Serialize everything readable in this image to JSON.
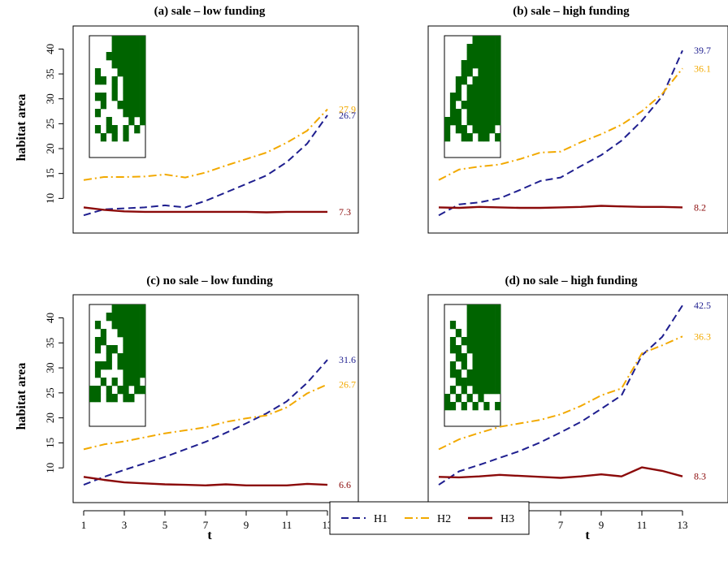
{
  "figure": {
    "ylabel": "habitat area",
    "xlabel": "t",
    "legend_position": "bottom-center"
  },
  "legend": [
    {
      "key": "H1",
      "label": "H1",
      "color": "#1f1f8f",
      "dash": "dashed"
    },
    {
      "key": "H2",
      "label": "H2",
      "color": "#f2a900",
      "dash": "dotdash"
    },
    {
      "key": "H3",
      "label": "H3",
      "color": "#8b0a0a",
      "dash": "solid"
    }
  ],
  "chart_data": [
    {
      "type": "line",
      "title": "(a) sale – low funding",
      "x": [
        1,
        2,
        3,
        4,
        5,
        6,
        7,
        8,
        9,
        10,
        11,
        12,
        13
      ],
      "xlim": [
        1,
        13
      ],
      "ylim": [
        5,
        43
      ],
      "x_ticks": [
        1,
        3,
        5,
        7,
        9,
        11,
        13
      ],
      "y_ticks": [
        10,
        15,
        20,
        25,
        30,
        35,
        40
      ],
      "series": [
        {
          "name": "H1",
          "values": [
            6.6,
            7.8,
            8.0,
            8.2,
            8.6,
            8.2,
            9.5,
            11.2,
            12.9,
            14.6,
            17.3,
            21.0,
            26.7
          ],
          "end_label": "26.7"
        },
        {
          "name": "H2",
          "values": [
            13.7,
            14.3,
            14.3,
            14.4,
            14.8,
            14.2,
            15.2,
            16.6,
            17.9,
            19.2,
            21.2,
            23.6,
            27.9
          ],
          "end_label": "27.9"
        },
        {
          "name": "H3",
          "values": [
            8.2,
            7.7,
            7.4,
            7.3,
            7.3,
            7.3,
            7.3,
            7.3,
            7.3,
            7.2,
            7.3,
            7.3,
            7.3
          ],
          "end_label": "7.3"
        }
      ],
      "inset_grid": {
        "cols": 10,
        "rows": 14,
        "filled": [
          "0000111111",
          "0000111111",
          "0001111111",
          "0000111111",
          "0100011111",
          "0110101111",
          "0000101111",
          "0110101111",
          "0010011111",
          "0100001111",
          "0001000101",
          "0101101010",
          "0010101000",
          "0000000000"
        ]
      }
    },
    {
      "type": "line",
      "title": "(b) sale – high funding",
      "x": [
        1,
        2,
        3,
        4,
        5,
        6,
        7,
        8,
        9,
        10,
        11,
        12,
        13
      ],
      "xlim": [
        1,
        13
      ],
      "ylim": [
        5,
        43
      ],
      "x_ticks": [
        1,
        3,
        5,
        7,
        9,
        11,
        13
      ],
      "y_ticks": [
        10,
        15,
        20,
        25,
        30,
        35,
        40
      ],
      "series": [
        {
          "name": "H1",
          "values": [
            6.6,
            8.8,
            9.2,
            10.0,
            11.7,
            13.5,
            14.2,
            16.5,
            18.7,
            21.6,
            25.6,
            30.5,
            39.7
          ],
          "end_label": "39.7"
        },
        {
          "name": "H2",
          "values": [
            13.7,
            15.8,
            16.4,
            16.8,
            17.9,
            19.2,
            19.4,
            21.3,
            22.9,
            24.8,
            27.5,
            31.0,
            36.1
          ],
          "end_label": "36.1"
        },
        {
          "name": "H3",
          "values": [
            8.2,
            8.1,
            8.3,
            8.2,
            8.1,
            8.1,
            8.2,
            8.3,
            8.5,
            8.4,
            8.3,
            8.3,
            8.2
          ],
          "end_label": "8.2"
        }
      ],
      "inset_grid": {
        "cols": 10,
        "rows": 14,
        "filled": [
          "0000011111",
          "0000111111",
          "0000111111",
          "0001111111",
          "0001101111",
          "0011011111",
          "0010111111",
          "0110111111",
          "0101111111",
          "0110111111",
          "1110111111",
          "1011011110",
          "1001101101",
          "0000000000"
        ]
      }
    },
    {
      "type": "line",
      "title": "(c) no sale – low funding",
      "x": [
        1,
        2,
        3,
        4,
        5,
        6,
        7,
        8,
        9,
        10,
        11,
        12,
        13
      ],
      "xlim": [
        1,
        13
      ],
      "ylim": [
        5,
        43
      ],
      "x_ticks": [
        1,
        3,
        5,
        7,
        9,
        11,
        13
      ],
      "y_ticks": [
        10,
        15,
        20,
        25,
        30,
        35,
        40
      ],
      "series": [
        {
          "name": "H1",
          "values": [
            6.6,
            8.2,
            9.6,
            10.9,
            12.2,
            13.7,
            15.2,
            17.0,
            18.9,
            20.9,
            23.3,
            27.0,
            31.6
          ],
          "end_label": "31.6"
        },
        {
          "name": "H2",
          "values": [
            13.7,
            14.7,
            15.3,
            16.1,
            16.9,
            17.5,
            18.1,
            19.2,
            19.9,
            20.5,
            22.1,
            24.9,
            26.7
          ],
          "end_label": "26.7"
        },
        {
          "name": "H3",
          "values": [
            8.2,
            7.6,
            7.1,
            6.9,
            6.7,
            6.6,
            6.5,
            6.7,
            6.5,
            6.5,
            6.5,
            6.8,
            6.6
          ],
          "end_label": "6.6"
        }
      ],
      "inset_grid": {
        "cols": 10,
        "rows": 14,
        "filled": [
          "0000111111",
          "0001111111",
          "0100111111",
          "0010011111",
          "0110001111",
          "0101101111",
          "0001011111",
          "0111011111",
          "0100001111",
          "0010101110",
          "1101011011",
          "1101101100",
          "0000000000",
          "0000000000"
        ]
      }
    },
    {
      "type": "line",
      "title": "(d) no sale – high funding",
      "x": [
        1,
        2,
        3,
        4,
        5,
        6,
        7,
        8,
        9,
        10,
        11,
        12,
        13
      ],
      "xlim": [
        1,
        13
      ],
      "ylim": [
        5,
        43
      ],
      "x_ticks": [
        1,
        3,
        5,
        7,
        9,
        11,
        13
      ],
      "y_ticks": [
        10,
        15,
        20,
        25,
        30,
        35,
        40
      ],
      "series": [
        {
          "name": "H1",
          "values": [
            6.6,
            9.3,
            10.6,
            12.0,
            13.4,
            15.1,
            17.1,
            19.2,
            21.8,
            24.5,
            32.5,
            36.2,
            42.5
          ],
          "end_label": "42.5"
        },
        {
          "name": "H2",
          "values": [
            13.7,
            15.7,
            17.0,
            18.2,
            18.9,
            19.6,
            20.7,
            22.4,
            24.5,
            25.9,
            32.9,
            34.5,
            36.3
          ],
          "end_label": "36.3"
        },
        {
          "name": "H3",
          "values": [
            8.2,
            8.1,
            8.3,
            8.6,
            8.4,
            8.2,
            8.0,
            8.3,
            8.7,
            8.3,
            10.1,
            9.4,
            8.3
          ],
          "end_label": "8.3"
        }
      ],
      "inset_grid": {
        "cols": 10,
        "rows": 14,
        "filled": [
          "0000111111",
          "0000111111",
          "0100111111",
          "0010111111",
          "0101111111",
          "0110111111",
          "0011011111",
          "0101011111",
          "0110111111",
          "0011111111",
          "0101011111",
          "1010101000",
          "1101010101",
          "0000000000"
        ]
      }
    }
  ]
}
